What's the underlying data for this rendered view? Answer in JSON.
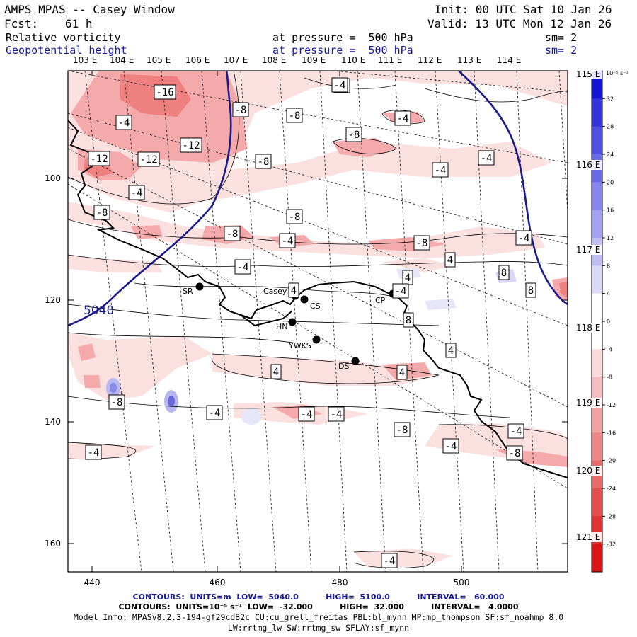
{
  "header": {
    "title": "AMPS MPAS -- Casey Window",
    "init": "Init: 00 UTC Sat 10 Jan 26",
    "fcst_label": "Fcst:",
    "fcst_value": "61 h",
    "valid": "Valid: 13 UTC Mon 12 Jan 26",
    "field1_name": "Relative vorticity",
    "field1_level": "at pressure =  500 hPa",
    "field1_sm": "sm= 2",
    "field2_name": "Geopotential height",
    "field2_level": "at pressure =  500 hPa",
    "field2_sm": "sm= 2"
  },
  "top_longitudes": [
    "103 E",
    "104 E",
    "105 E",
    "106 E",
    "107 E",
    "108 E",
    "109 E",
    "110 E",
    "111 E",
    "112 E",
    "113 E",
    "114 E"
  ],
  "right_longitudes": [
    "115 E",
    "116 E",
    "117 E",
    "118 E",
    "119 E",
    "120 E",
    "121 E"
  ],
  "x_ticks": [
    "440",
    "460",
    "480",
    "500"
  ],
  "y_ticks": [
    "100",
    "120",
    "140",
    "160"
  ],
  "colorbar": {
    "unit": "10⁻⁵ s⁻¹",
    "labels": [
      "32",
      "28",
      "24",
      "20",
      "16",
      "12",
      "8",
      "4",
      "0",
      "-4",
      "-8",
      "-12",
      "-16",
      "-20",
      "-24",
      "-28",
      "-32"
    ]
  },
  "stations": [
    {
      "name": "SR"
    },
    {
      "name": "Casey"
    },
    {
      "name": "CS"
    },
    {
      "name": "CP"
    },
    {
      "name": "HN"
    },
    {
      "name": "YWKS"
    },
    {
      "name": "DS"
    }
  ],
  "height_contour_label": "5040",
  "vort_labels": [
    "-16",
    "-8",
    "-4",
    "-8",
    "-8",
    "-4",
    "-8",
    "-12",
    "-12",
    "-12",
    "-8",
    "-4",
    "-4",
    "-4",
    "-8",
    "-8",
    "-4",
    "-8",
    "-8",
    "-4",
    "-4",
    "4",
    "4",
    "8",
    "8",
    "4",
    "8",
    "4",
    "4",
    "4",
    "-8",
    "-4",
    "-4",
    "-4",
    "-8",
    "-4",
    "-4",
    "-4",
    "-4",
    "-4",
    "-8",
    "-4"
  ],
  "footer": {
    "line1": "CONTOURS:  UNITS=m  LOW=  5040.0          HIGH=  5100.0          INTERVAL=   60.000",
    "line2": "CONTOURS:  UNITS=10⁻⁵ s⁻¹  LOW=  -32.000          HIGH=  32.000          INTERVAL=   4.0000",
    "line3": "Model Info: MPASv8.2.3-194-gf29cd82c CU:cu_grell_freitas PBL:bl_mynn MP:mp_thompson SF:sf_noahmp 8.0",
    "line4": "LW:rrtmg_lw SW:rrtmg_sw SFLAY:sf_mynn"
  },
  "colors": {
    "neg_light": "#fbe0e0",
    "neg_mid": "#f4aaaa",
    "neg_strong": "#ee8080",
    "pos_light": "#d8d8f6",
    "pos_mid": "#8888e8",
    "height_line": "#1a1a8c"
  }
}
